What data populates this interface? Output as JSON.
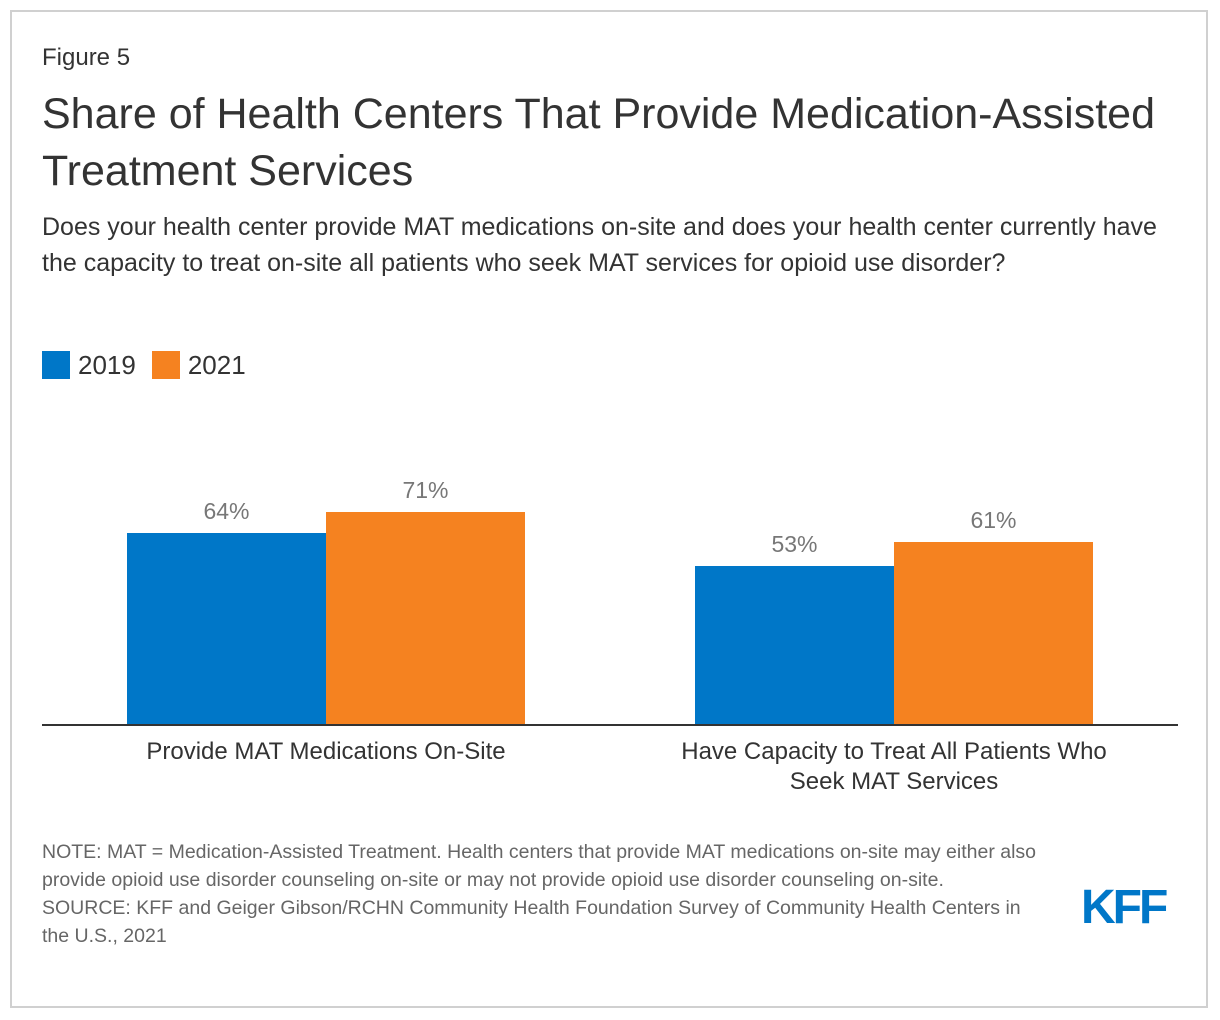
{
  "figure_label": "Figure 5",
  "title": "Share of Health Centers That Provide Medication-Assisted Treatment Services",
  "subtitle": "Does your health center provide MAT medications on-site and does your health center currently have the capacity to treat on-site all patients who seek MAT services for opioid use disorder?",
  "notes": {
    "note": "NOTE: MAT = Medication-Assisted Treatment. Health centers that provide MAT medications on-site may either also provide opioid use disorder counseling on-site or may not provide opioid use disorder counseling on-site.",
    "source": "SOURCE: KFF and Geiger Gibson/RCHN Community Health Foundation Survey of Community Health Centers in the U.S., 2021"
  },
  "logo_text": "KFF",
  "colors": {
    "series_2019": "#0077c8",
    "series_2021": "#f58220",
    "logo": "#0077c8"
  },
  "chart_data": {
    "type": "bar",
    "title": "Share of Health Centers That Provide Medication-Assisted Treatment Services",
    "xlabel": "",
    "ylabel": "",
    "ylim": [
      0,
      100
    ],
    "grid": false,
    "legend_position": "top-left",
    "categories": [
      [
        "Provide MAT Medications On-Site"
      ],
      [
        "Have Capacity to Treat All Patients Who",
        "Seek MAT Services"
      ]
    ],
    "series": [
      {
        "name": "2019",
        "color": "#0077c8",
        "values": [
          64,
          53
        ],
        "labels": [
          "64%",
          "53%"
        ]
      },
      {
        "name": "2021",
        "color": "#f58220",
        "values": [
          71,
          61
        ],
        "labels": [
          "71%",
          "61%"
        ]
      }
    ]
  }
}
